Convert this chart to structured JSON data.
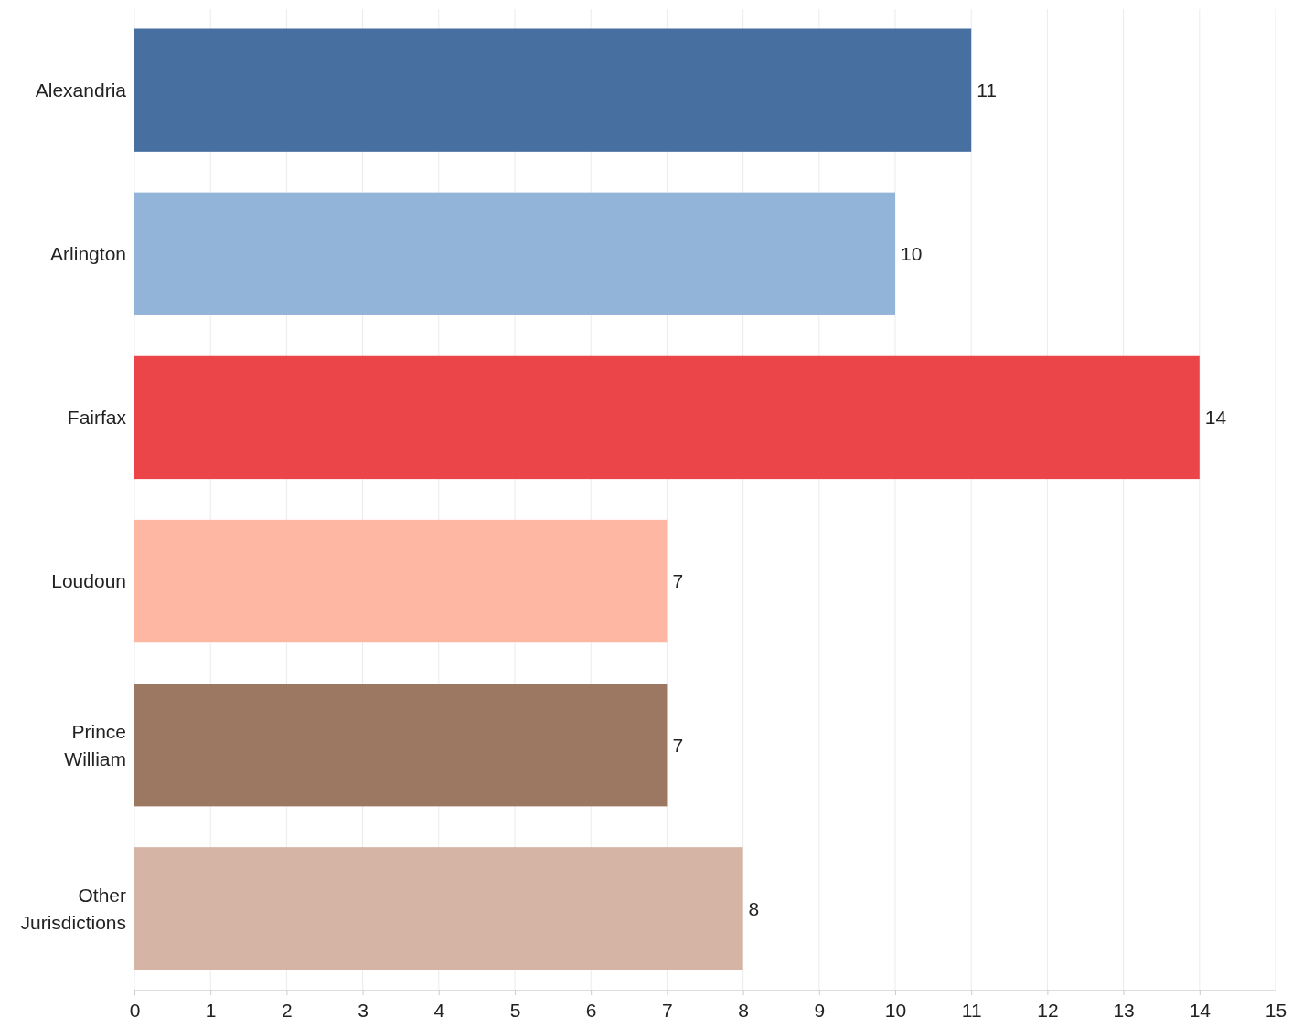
{
  "chart_data": {
    "type": "bar",
    "orientation": "horizontal",
    "categories": [
      "Alexandria",
      "Arlington",
      "Fairfax",
      "Loudoun",
      "Prince William",
      "Other Jurisdictions"
    ],
    "values": [
      11,
      10,
      14,
      7,
      7,
      8
    ],
    "colors": [
      "#4770a0",
      "#93b4d9",
      "#eb4549",
      "#fdb7a3",
      "#9c7761",
      "#d6b4a5"
    ],
    "xlim": [
      0,
      15
    ],
    "xticks": [
      0,
      1,
      2,
      3,
      4,
      5,
      6,
      7,
      8,
      9,
      10,
      11,
      12,
      13,
      14,
      15
    ],
    "grid": "x",
    "data_labels": true
  }
}
